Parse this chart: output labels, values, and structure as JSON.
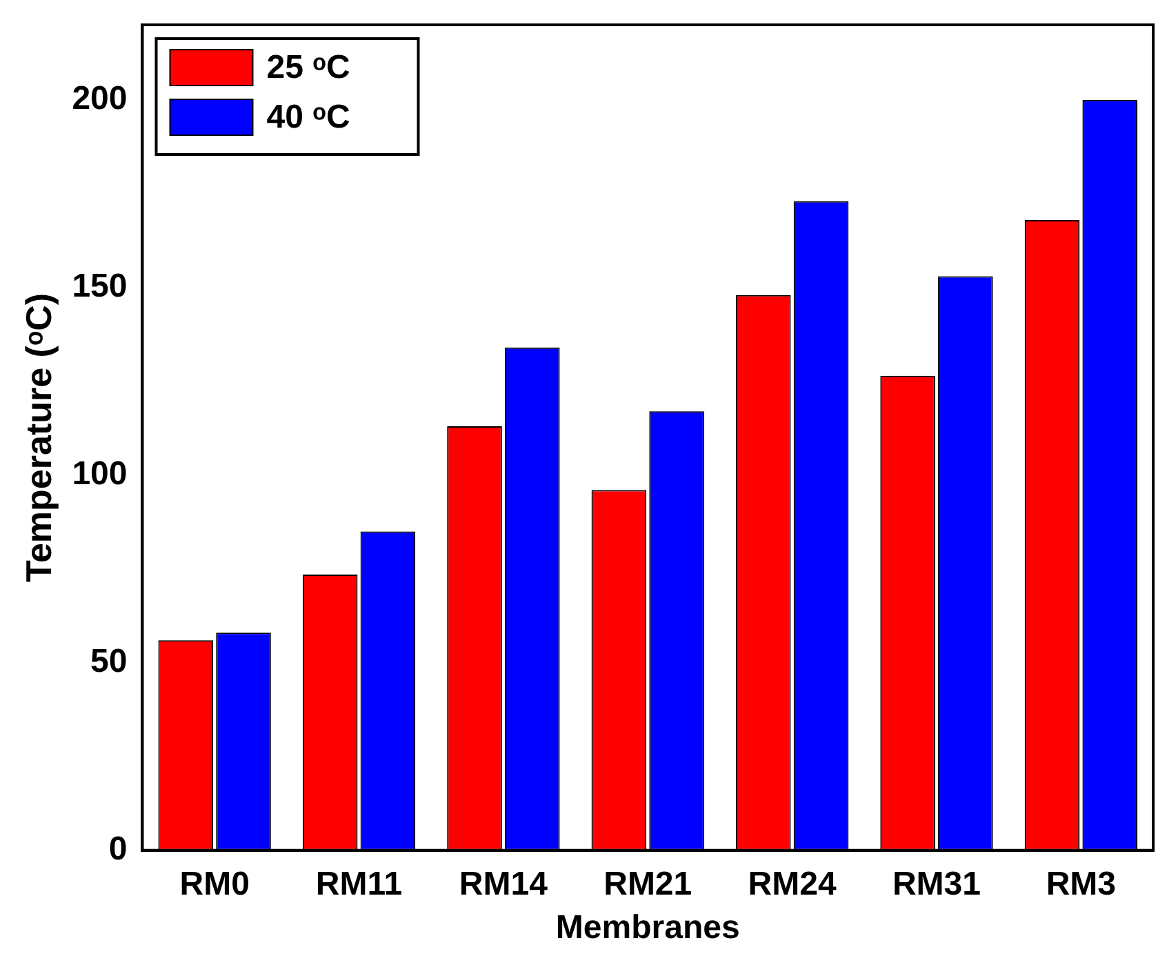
{
  "chart_data": {
    "type": "bar",
    "xlabel": "Membranes",
    "ylabel": "Temperature (ᵒC)",
    "categories": [
      "RM0",
      "RM11",
      "RM14",
      "RM21",
      "RM24",
      "RM31",
      "RM3"
    ],
    "series": [
      {
        "name": "25 ᵒC",
        "color": "#ff0000",
        "values": [
          56,
          73.5,
          113,
          96,
          148,
          126.5,
          168
        ]
      },
      {
        "name": "40 ᵒC",
        "color": "#0000ff",
        "values": [
          58,
          85,
          134,
          117,
          173,
          153,
          200
        ]
      }
    ],
    "ylim": [
      0,
      220
    ],
    "yticks": [
      0,
      50,
      100,
      150,
      200
    ],
    "grid": false,
    "legend": "top left"
  }
}
